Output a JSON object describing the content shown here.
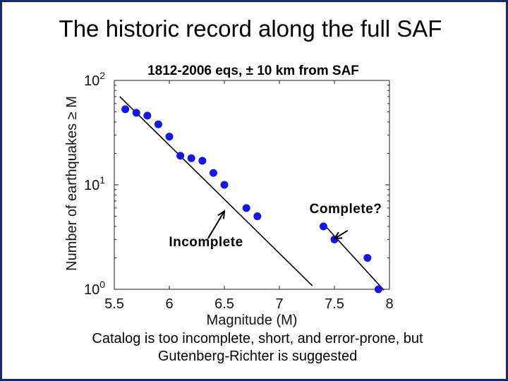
{
  "slide": {
    "title": "The historic record along the full SAF",
    "caption_line1": "Catalog is too incomplete, short, and error-prone, but",
    "caption_line2": "Gutenberg-Richter is suggested"
  },
  "chart_data": {
    "type": "scatter",
    "title": "1812-2006 eqs, ± 10 km from SAF",
    "xlabel": "Magnitude (M)",
    "ylabel": "Number of earthquakes ≥ M",
    "xlim": [
      5.5,
      8
    ],
    "ylim": [
      1,
      100
    ],
    "yscale": "log",
    "x_ticks": [
      "5.5",
      "6",
      "6.5",
      "7",
      "7.5",
      "8"
    ],
    "y_ticks": [
      {
        "base": "10",
        "exp": "0"
      },
      {
        "base": "10",
        "exp": "1"
      },
      {
        "base": "10",
        "exp": "2"
      }
    ],
    "points": [
      {
        "x": 5.6,
        "y": 53
      },
      {
        "x": 5.7,
        "y": 49
      },
      {
        "x": 5.8,
        "y": 46
      },
      {
        "x": 5.9,
        "y": 38
      },
      {
        "x": 6.0,
        "y": 29
      },
      {
        "x": 6.1,
        "y": 19
      },
      {
        "x": 6.2,
        "y": 18
      },
      {
        "x": 6.3,
        "y": 17
      },
      {
        "x": 6.4,
        "y": 13
      },
      {
        "x": 6.5,
        "y": 10
      },
      {
        "x": 6.7,
        "y": 6
      },
      {
        "x": 6.8,
        "y": 5
      },
      {
        "x": 7.4,
        "y": 4
      },
      {
        "x": 7.5,
        "y": 3
      },
      {
        "x": 7.8,
        "y": 2
      },
      {
        "x": 7.9,
        "y": 1
      }
    ],
    "fit_lines": [
      {
        "x": [
          5.55,
          7.3
        ],
        "y": [
          70,
          1.08
        ]
      },
      {
        "x": [
          7.43,
          7.95
        ],
        "y": [
          3.9,
          0.98
        ]
      }
    ],
    "point_color": "#1515ee",
    "grid": false,
    "annotations": [
      {
        "text": "Complete?",
        "arrow_from": [
          7.62,
          3.65
        ],
        "arrow_to": [
          7.5,
          3.05
        ]
      },
      {
        "text": "Incomplete",
        "arrow_from": [
          6.35,
          3.05
        ],
        "arrow_to": [
          6.5,
          5.6
        ]
      }
    ]
  }
}
